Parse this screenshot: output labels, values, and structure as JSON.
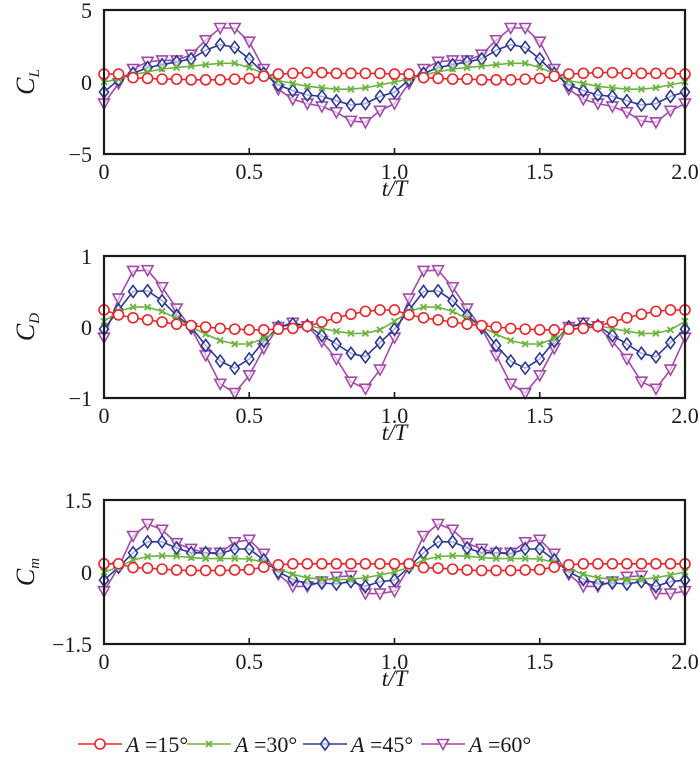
{
  "chart_data": [
    {
      "type": "line",
      "ylabel_main": "C",
      "ylabel_sub": "L",
      "xlabel": "t/T",
      "xlim": [
        0,
        2.0
      ],
      "ylim": [
        -5,
        5
      ],
      "xticks": [
        "0",
        "0.5",
        "1.0",
        "1.5",
        "2.0"
      ],
      "xtick_values": [
        0,
        0.5,
        1.0,
        1.5,
        2.0
      ],
      "yticks": [
        "5",
        "0",
        "−5"
      ],
      "ytick_values": [
        5,
        0,
        -5
      ],
      "x": [
        0,
        0.05,
        0.1,
        0.15,
        0.2,
        0.25,
        0.3,
        0.35,
        0.4,
        0.45,
        0.5,
        0.55,
        0.6,
        0.65,
        0.7,
        0.75,
        0.8,
        0.85,
        0.9,
        0.95,
        1.0,
        1.05,
        1.1,
        1.15,
        1.2,
        1.25,
        1.3,
        1.35,
        1.4,
        1.45,
        1.5,
        1.55,
        1.6,
        1.65,
        1.7,
        1.75,
        1.8,
        1.85,
        1.9,
        1.95,
        2.0
      ],
      "series": [
        {
          "name": "A=15°",
          "values": [
            0.55,
            0.55,
            0.3,
            0.25,
            0.2,
            0.2,
            0.15,
            0.15,
            0.15,
            0.2,
            0.25,
            0.4,
            0.55,
            0.6,
            0.65,
            0.65,
            0.6,
            0.6,
            0.6,
            0.6,
            0.55,
            0.55,
            0.3,
            0.25,
            0.2,
            0.2,
            0.15,
            0.15,
            0.15,
            0.2,
            0.25,
            0.4,
            0.55,
            0.6,
            0.65,
            0.65,
            0.6,
            0.6,
            0.6,
            0.6,
            0.55
          ]
        },
        {
          "name": "A=30°",
          "values": [
            0.0,
            0.2,
            0.5,
            0.7,
            0.9,
            1.0,
            1.1,
            1.2,
            1.3,
            1.3,
            1.0,
            0.6,
            0.1,
            -0.1,
            -0.3,
            -0.4,
            -0.5,
            -0.5,
            -0.4,
            -0.2,
            0.0,
            0.2,
            0.5,
            0.7,
            0.9,
            1.0,
            1.1,
            1.2,
            1.3,
            1.3,
            1.0,
            0.6,
            0.1,
            -0.1,
            -0.3,
            -0.4,
            -0.5,
            -0.5,
            -0.4,
            -0.2,
            0.0
          ]
        },
        {
          "name": "A=45°",
          "values": [
            -0.7,
            0.15,
            0.6,
            1.0,
            1.2,
            1.4,
            1.6,
            2.2,
            2.6,
            2.4,
            1.6,
            0.6,
            -0.2,
            -0.6,
            -0.9,
            -1.0,
            -1.3,
            -1.6,
            -1.5,
            -1.0,
            -0.7,
            0.15,
            0.6,
            1.0,
            1.2,
            1.4,
            1.6,
            2.2,
            2.6,
            2.4,
            1.6,
            0.6,
            -0.2,
            -0.6,
            -0.9,
            -1.0,
            -1.3,
            -1.6,
            -1.5,
            -1.0,
            -0.7
          ]
        },
        {
          "name": "A=60°",
          "values": [
            -1.5,
            -0.1,
            0.9,
            1.4,
            1.5,
            1.5,
            1.9,
            2.9,
            3.75,
            3.75,
            2.8,
            0.9,
            -0.5,
            -1.2,
            -1.5,
            -1.7,
            -2.1,
            -2.7,
            -2.8,
            -2.0,
            -1.5,
            -0.1,
            0.9,
            1.4,
            1.5,
            1.5,
            1.9,
            2.9,
            3.75,
            3.75,
            2.8,
            0.9,
            -0.5,
            -1.2,
            -1.5,
            -1.7,
            -2.1,
            -2.7,
            -2.8,
            -2.0,
            -1.5
          ]
        }
      ]
    },
    {
      "type": "line",
      "ylabel_main": "C",
      "ylabel_sub": "D",
      "xlabel": "t/T",
      "xlim": [
        0,
        2.0
      ],
      "ylim": [
        -1,
        1
      ],
      "xticks": [
        "0",
        "0.5",
        "1.0",
        "1.5",
        "2.0"
      ],
      "xtick_values": [
        0,
        0.5,
        1.0,
        1.5,
        2.0
      ],
      "yticks": [
        "1",
        "0",
        "−1"
      ],
      "ytick_values": [
        1,
        0,
        -1
      ],
      "x": [
        0,
        0.05,
        0.1,
        0.15,
        0.2,
        0.25,
        0.3,
        0.35,
        0.4,
        0.45,
        0.5,
        0.55,
        0.6,
        0.65,
        0.7,
        0.75,
        0.8,
        0.85,
        0.9,
        0.95,
        1.0,
        1.05,
        1.1,
        1.15,
        1.2,
        1.25,
        1.3,
        1.35,
        1.4,
        1.45,
        1.5,
        1.55,
        1.6,
        1.65,
        1.7,
        1.75,
        1.8,
        1.85,
        1.9,
        1.95,
        2.0
      ],
      "series": [
        {
          "name": "A=15°",
          "values": [
            0.24,
            0.17,
            0.13,
            0.1,
            0.07,
            0.04,
            0.02,
            0.0,
            -0.02,
            -0.03,
            -0.04,
            -0.04,
            -0.03,
            -0.02,
            0.01,
            0.07,
            0.13,
            0.18,
            0.22,
            0.24,
            0.24,
            0.17,
            0.13,
            0.1,
            0.07,
            0.04,
            0.02,
            0.0,
            -0.02,
            -0.03,
            -0.04,
            -0.04,
            -0.03,
            -0.02,
            0.01,
            0.07,
            0.13,
            0.18,
            0.22,
            0.24,
            0.24
          ]
        },
        {
          "name": "A=30°",
          "values": [
            0.08,
            0.22,
            0.28,
            0.28,
            0.22,
            0.12,
            0.0,
            -0.1,
            -0.19,
            -0.24,
            -0.24,
            -0.16,
            -0.06,
            0.01,
            0.02,
            -0.02,
            -0.06,
            -0.09,
            -0.09,
            -0.04,
            0.08,
            0.22,
            0.28,
            0.28,
            0.22,
            0.12,
            0.0,
            -0.1,
            -0.19,
            -0.24,
            -0.24,
            -0.16,
            -0.06,
            0.01,
            0.02,
            -0.02,
            -0.06,
            -0.09,
            -0.09,
            -0.04,
            0.08
          ]
        },
        {
          "name": "A=45°",
          "values": [
            -0.03,
            0.24,
            0.5,
            0.51,
            0.37,
            0.16,
            0.0,
            -0.26,
            -0.48,
            -0.58,
            -0.45,
            -0.2,
            0.0,
            0.04,
            0.02,
            -0.12,
            -0.24,
            -0.37,
            -0.42,
            -0.22,
            -0.03,
            0.24,
            0.5,
            0.51,
            0.37,
            0.16,
            0.0,
            -0.26,
            -0.48,
            -0.58,
            -0.45,
            -0.2,
            0.0,
            0.04,
            0.02,
            -0.12,
            -0.24,
            -0.37,
            -0.42,
            -0.22,
            -0.03
          ]
        },
        {
          "name": "A=60°",
          "values": [
            -0.15,
            0.4,
            0.79,
            0.8,
            0.56,
            0.26,
            -0.02,
            -0.4,
            -0.8,
            -0.93,
            -0.68,
            -0.3,
            0.0,
            0.06,
            0.01,
            -0.2,
            -0.45,
            -0.77,
            -0.87,
            -0.6,
            -0.15,
            0.4,
            0.79,
            0.8,
            0.56,
            0.26,
            -0.02,
            -0.4,
            -0.8,
            -0.93,
            -0.68,
            -0.3,
            0.0,
            0.06,
            0.01,
            -0.2,
            -0.45,
            -0.77,
            -0.87,
            -0.6,
            -0.15
          ]
        }
      ]
    },
    {
      "type": "line",
      "ylabel_main": "C",
      "ylabel_sub": "m",
      "xlabel": "t/T",
      "xlim": [
        0,
        2.0
      ],
      "ylim": [
        -1.5,
        1.5
      ],
      "xticks": [
        "0",
        "0.5",
        "1.0",
        "1.5",
        "2.0"
      ],
      "xtick_values": [
        0,
        0.5,
        1.0,
        1.5,
        2.0
      ],
      "yticks": [
        "1.5",
        "0",
        "−1.5"
      ],
      "ytick_values": [
        1.5,
        0,
        -1.5
      ],
      "x": [
        0,
        0.05,
        0.1,
        0.15,
        0.2,
        0.25,
        0.3,
        0.35,
        0.4,
        0.45,
        0.5,
        0.55,
        0.6,
        0.65,
        0.7,
        0.75,
        0.8,
        0.85,
        0.9,
        0.95,
        1.0,
        1.05,
        1.1,
        1.15,
        1.2,
        1.25,
        1.3,
        1.35,
        1.4,
        1.45,
        1.5,
        1.55,
        1.6,
        1.65,
        1.7,
        1.75,
        1.8,
        1.85,
        1.9,
        1.95,
        2.0
      ],
      "series": [
        {
          "name": "A=15°",
          "values": [
            0.17,
            0.17,
            0.09,
            0.08,
            0.06,
            0.04,
            0.03,
            0.03,
            0.03,
            0.04,
            0.05,
            0.1,
            0.15,
            0.17,
            0.17,
            0.17,
            0.17,
            0.17,
            0.17,
            0.17,
            0.17,
            0.17,
            0.09,
            0.08,
            0.06,
            0.04,
            0.03,
            0.03,
            0.03,
            0.04,
            0.05,
            0.1,
            0.15,
            0.17,
            0.17,
            0.17,
            0.17,
            0.17,
            0.17,
            0.17,
            0.17
          ]
        },
        {
          "name": "A=30°",
          "values": [
            0.0,
            0.1,
            0.25,
            0.32,
            0.34,
            0.33,
            0.3,
            0.28,
            0.28,
            0.28,
            0.27,
            0.2,
            0.07,
            -0.05,
            -0.12,
            -0.15,
            -0.16,
            -0.15,
            -0.12,
            -0.06,
            0.0,
            0.1,
            0.25,
            0.32,
            0.34,
            0.33,
            0.3,
            0.28,
            0.28,
            0.28,
            0.27,
            0.2,
            0.07,
            -0.05,
            -0.12,
            -0.15,
            -0.16,
            -0.15,
            -0.12,
            -0.06,
            0.0
          ]
        },
        {
          "name": "A=45°",
          "values": [
            -0.17,
            0.1,
            0.4,
            0.63,
            0.63,
            0.5,
            0.4,
            0.4,
            0.38,
            0.48,
            0.48,
            0.25,
            0.0,
            -0.15,
            -0.25,
            -0.23,
            -0.25,
            -0.2,
            -0.3,
            -0.2,
            -0.17,
            0.1,
            0.4,
            0.63,
            0.63,
            0.5,
            0.4,
            0.4,
            0.38,
            0.48,
            0.48,
            0.25,
            0.0,
            -0.15,
            -0.25,
            -0.23,
            -0.25,
            -0.2,
            -0.3,
            -0.2,
            -0.17
          ]
        },
        {
          "name": "A=60°",
          "values": [
            -0.4,
            0.1,
            0.75,
            1.0,
            0.88,
            0.6,
            0.48,
            0.4,
            0.4,
            0.62,
            0.67,
            0.38,
            -0.05,
            -0.3,
            -0.3,
            -0.2,
            -0.1,
            -0.08,
            -0.45,
            -0.45,
            -0.4,
            0.1,
            0.75,
            1.0,
            0.88,
            0.6,
            0.48,
            0.4,
            0.4,
            0.62,
            0.67,
            0.38,
            -0.05,
            -0.3,
            -0.3,
            -0.2,
            -0.1,
            -0.08,
            -0.45,
            -0.45,
            -0.4
          ]
        }
      ]
    }
  ],
  "legend": {
    "placement": "bottom",
    "items": [
      {
        "prefix": "A",
        "label": "=15°",
        "color": "#e8262b",
        "marker": "circle"
      },
      {
        "prefix": "A",
        "label": "=30°",
        "color": "#6cb33f",
        "marker": "x"
      },
      {
        "prefix": "A",
        "label": "=45°",
        "color": "#2b3990",
        "marker": "diamond"
      },
      {
        "prefix": "A",
        "label": "=60°",
        "color": "#a34aa8",
        "marker": "triangle-down"
      }
    ]
  }
}
